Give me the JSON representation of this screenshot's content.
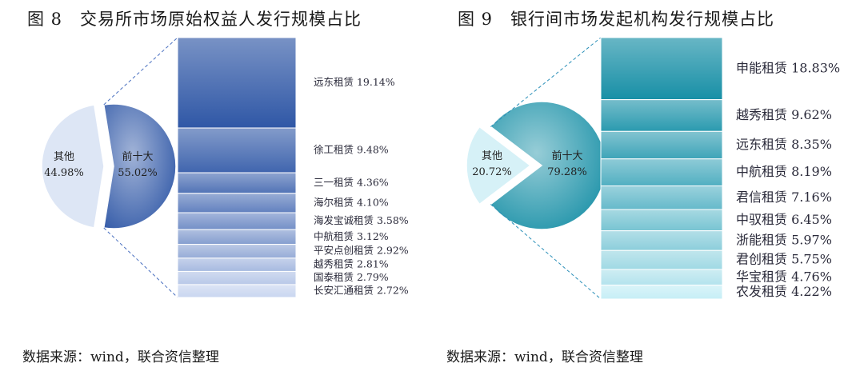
{
  "charts": [
    {
      "title": "图 8　交易所市场原始权益人发行规模占比",
      "source": "数据来源：wind，联合资信整理",
      "chart_data": {
        "type": "bar-of-pie",
        "pie": [
          {
            "label": "其他",
            "value": 44.98,
            "display": "44.98%"
          },
          {
            "label": "前十大",
            "value": 55.02,
            "display": "55.02%"
          }
        ],
        "stack_categories": [
          "远东租赁",
          "徐工租赁",
          "三一租赁",
          "海尔租赁",
          "海发宝诚租赁",
          "中航租赁",
          "平安点创租赁",
          "越秀租赁",
          "国泰租赁",
          "长安汇通租赁"
        ],
        "stack_values": [
          19.14,
          9.48,
          4.36,
          4.1,
          3.58,
          3.12,
          2.92,
          2.81,
          2.79,
          2.72
        ],
        "stack_labels": [
          "远东租赁 19.14%",
          "徐工租赁 9.48%",
          "三一租赁 4.36%",
          "海尔租赁 4.10%",
          "海发宝诚租赁 3.58%",
          "中航租赁 3.12%",
          "平安点创租赁 2.92%",
          "越秀租赁 2.81%",
          "国泰租赁 2.79%",
          "长安汇通租赁 2.72%"
        ],
        "colors": {
          "dark": "#2f57a6",
          "light": "#c9d6f0",
          "pie_other": "#dde6f5",
          "connector": "#4a70c0"
        }
      }
    },
    {
      "title": "图 9　银行间市场发起机构发行规模占比",
      "source": "数据来源：wind，联合资信整理",
      "chart_data": {
        "type": "bar-of-pie",
        "pie": [
          {
            "label": "其他",
            "value": 20.72,
            "display": "20.72%"
          },
          {
            "label": "前十大",
            "value": 79.28,
            "display": "79.28%"
          }
        ],
        "stack_categories": [
          "申能租赁",
          "越秀租赁",
          "远东租赁",
          "中航租赁",
          "君信租赁",
          "中驭租赁",
          "浙能租赁",
          "君创租赁",
          "华宝租赁",
          "农发租赁"
        ],
        "stack_values": [
          18.83,
          9.62,
          8.35,
          8.19,
          7.16,
          6.45,
          5.97,
          5.75,
          4.76,
          4.22
        ],
        "stack_labels": [
          "申能租赁 18.83%",
          "越秀租赁 9.62%",
          "远东租赁 8.35%",
          "中航租赁 8.19%",
          "君信租赁 7.16%",
          "中驭租赁 6.45%",
          "浙能租赁 5.97%",
          "君创租赁 5.75%",
          "华宝租赁 4.76%",
          "农发租赁 4.22%"
        ],
        "colors": {
          "dark": "#178fa6",
          "light": "#c6eef6",
          "pie_other": "#d6f1f7",
          "connector": "#2a8fb8"
        }
      }
    }
  ]
}
